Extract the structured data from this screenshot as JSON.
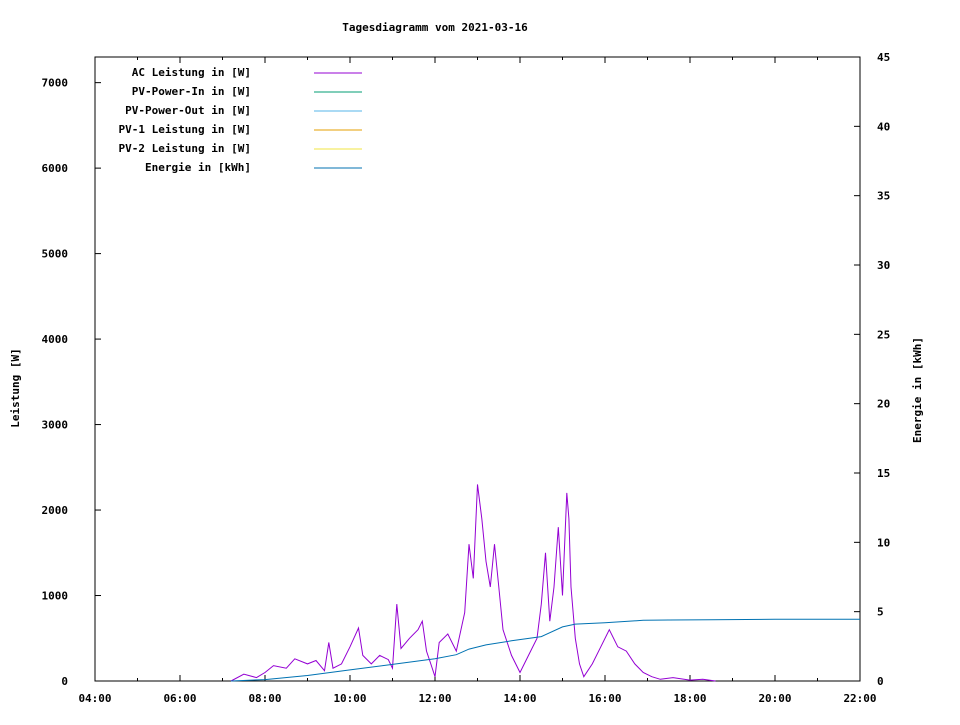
{
  "chart_data": {
    "type": "line",
    "title": "Tagesdiagramm vom 2021-03-16",
    "ylabel": "Leistung [W]",
    "y2label": "Energie in [kWh]",
    "x_ticks": [
      "04:00",
      "06:00",
      "08:00",
      "10:00",
      "12:00",
      "14:00",
      "16:00",
      "18:00",
      "20:00",
      "22:00"
    ],
    "y_ticks": [
      0,
      1000,
      2000,
      3000,
      4000,
      5000,
      6000,
      7000
    ],
    "y2_ticks": [
      0,
      5,
      10,
      15,
      20,
      25,
      30,
      35,
      40,
      45
    ],
    "xlim_hours": [
      4,
      22
    ],
    "ylim": [
      0,
      7300
    ],
    "y2lim": [
      0,
      45
    ],
    "legend_position": "top-left",
    "series": [
      {
        "name": "AC Leistung in [W]",
        "color": "#9400d3",
        "axis": "left",
        "x": [
          7.2,
          7.5,
          7.8,
          8.0,
          8.2,
          8.5,
          8.7,
          9.0,
          9.2,
          9.4,
          9.5,
          9.6,
          9.8,
          10.0,
          10.2,
          10.3,
          10.5,
          10.7,
          10.9,
          11.0,
          11.1,
          11.2,
          11.4,
          11.6,
          11.7,
          11.8,
          11.9,
          12.0,
          12.1,
          12.3,
          12.5,
          12.7,
          12.8,
          12.9,
          13.0,
          13.1,
          13.2,
          13.3,
          13.4,
          13.5,
          13.6,
          13.8,
          14.0,
          14.2,
          14.4,
          14.5,
          14.6,
          14.7,
          14.8,
          14.9,
          15.0,
          15.1,
          15.15,
          15.2,
          15.3,
          15.4,
          15.5,
          15.7,
          15.9,
          16.1,
          16.3,
          16.5,
          16.7,
          16.9,
          17.1,
          17.3,
          17.6,
          18.0,
          18.3,
          18.6
        ],
        "values": [
          0,
          80,
          40,
          100,
          180,
          150,
          260,
          200,
          240,
          120,
          450,
          150,
          200,
          400,
          620,
          300,
          200,
          300,
          250,
          150,
          900,
          380,
          500,
          600,
          700,
          350,
          200,
          50,
          450,
          550,
          350,
          800,
          1600,
          1200,
          2300,
          1900,
          1400,
          1100,
          1600,
          1100,
          600,
          300,
          100,
          300,
          500,
          900,
          1500,
          700,
          1100,
          1800,
          1000,
          2200,
          1900,
          1100,
          500,
          200,
          50,
          200,
          400,
          600,
          400,
          350,
          200,
          100,
          50,
          20,
          40,
          10,
          20,
          0
        ]
      },
      {
        "name": "PV-Power-In in [W]",
        "color": "#009e73",
        "axis": "left",
        "x": [],
        "values": []
      },
      {
        "name": "PV-Power-Out in [W]",
        "color": "#56b4e9",
        "axis": "left",
        "x": [],
        "values": []
      },
      {
        "name": "PV-1 Leistung in [W]",
        "color": "#e69f00",
        "axis": "left",
        "x": [],
        "values": []
      },
      {
        "name": "PV-2 Leistung in [W]",
        "color": "#f0e442",
        "axis": "left",
        "x": [],
        "values": []
      },
      {
        "name": "Energie in [kWh]",
        "color": "#0072b2",
        "axis": "right",
        "x": [
          7.2,
          8.0,
          9.0,
          10.0,
          11.0,
          12.0,
          12.5,
          12.8,
          13.2,
          13.8,
          14.5,
          15.0,
          15.3,
          16.0,
          16.5,
          16.9,
          17.5,
          18.5,
          20.0,
          22.0
        ],
        "values": [
          0.0,
          0.1,
          0.4,
          0.8,
          1.2,
          1.6,
          1.9,
          2.3,
          2.6,
          2.9,
          3.2,
          3.9,
          4.1,
          4.2,
          4.3,
          4.38,
          4.4,
          4.42,
          4.45,
          4.45
        ]
      }
    ]
  }
}
